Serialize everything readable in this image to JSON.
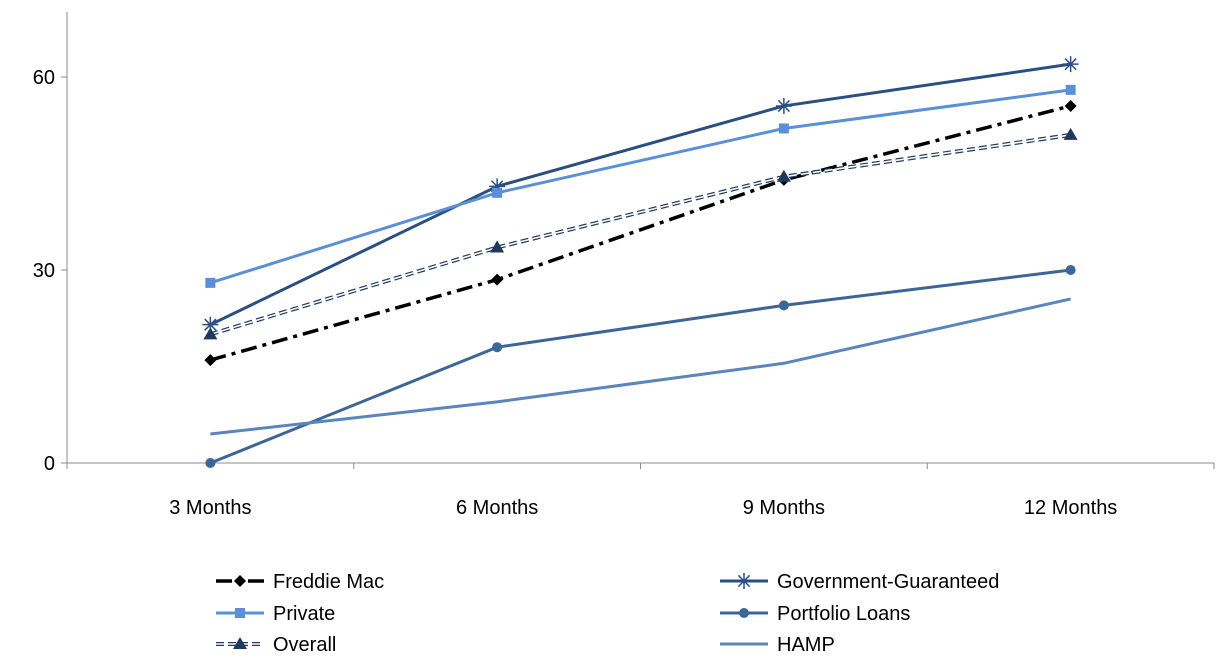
{
  "chart_data": {
    "type": "line",
    "categories": [
      "3 Months",
      "6 Months",
      "9 Months",
      "12 Months"
    ],
    "ylim": [
      0,
      70
    ],
    "yticks": [
      0,
      30,
      60
    ],
    "grid": false,
    "legend_position": "bottom",
    "series": [
      {
        "name": "Freddie Mac",
        "values": [
          16,
          28.5,
          44,
          55.5
        ],
        "color": "#000000",
        "dash": "dash-dot",
        "marker": "diamond"
      },
      {
        "name": "Government-Guaranteed",
        "values": [
          21.5,
          43,
          55.5,
          62
        ],
        "color": "#2a4f80",
        "dash": "solid",
        "marker": "asterisk"
      },
      {
        "name": "Private",
        "values": [
          28,
          42,
          52,
          58
        ],
        "color": "#5b8fd6",
        "dash": "solid",
        "marker": "square"
      },
      {
        "name": "Portfolio Loans",
        "values": [
          0,
          18,
          24.5,
          30
        ],
        "color": "#3d6696",
        "dash": "solid",
        "marker": "circle"
      },
      {
        "name": "Overall",
        "values": [
          20,
          33.5,
          44.5,
          51
        ],
        "color": "#1f3a5c",
        "dash": "double-dash",
        "marker": "triangle"
      },
      {
        "name": "HAMP",
        "values": [
          4.5,
          9.5,
          15.5,
          25.5
        ],
        "color": "#5a86bd",
        "dash": "solid",
        "marker": "none"
      }
    ]
  }
}
